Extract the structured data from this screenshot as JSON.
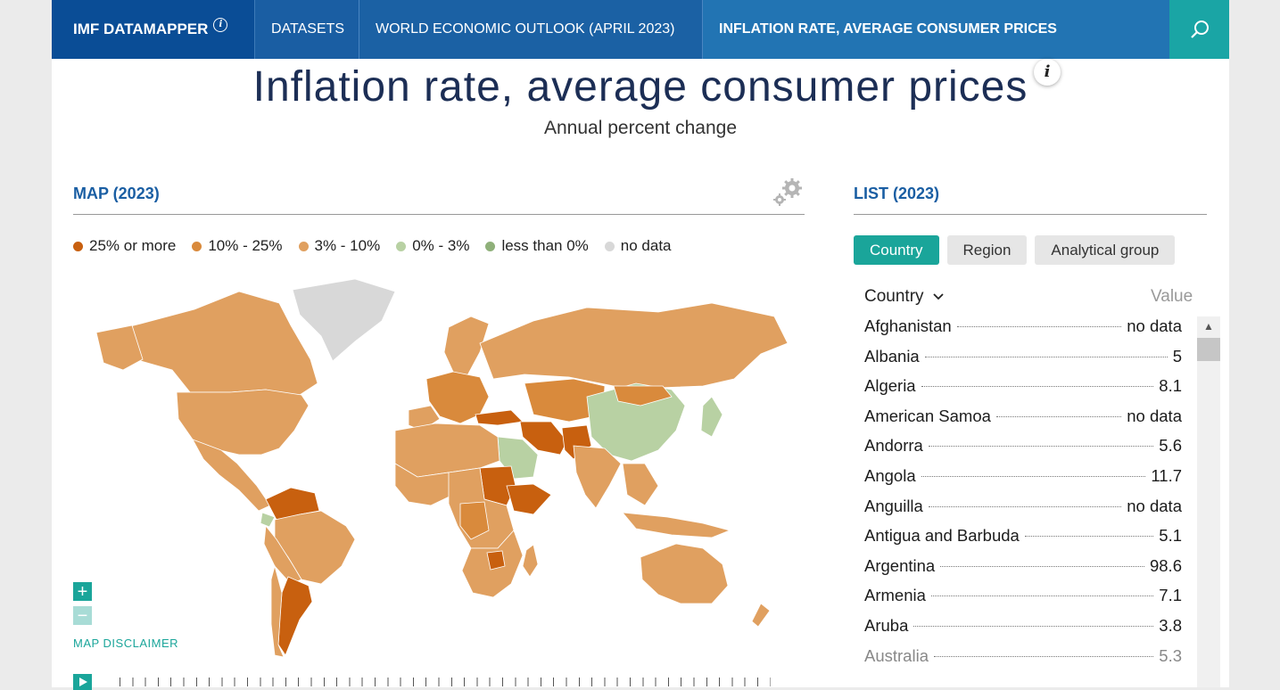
{
  "nav": {
    "brand": "IMF DATAMAPPER",
    "datasets": "DATASETS",
    "weo": "WORLD ECONOMIC OUTLOOK (APRIL 2023)",
    "current": "INFLATION RATE, AVERAGE CONSUMER PRICES"
  },
  "header": {
    "title": "Inflation rate, average consumer prices",
    "subtitle": "Annual percent change"
  },
  "map": {
    "section_title": "MAP (2023)",
    "legend": [
      {
        "label": "25% or more",
        "color": "#c8600f"
      },
      {
        "label": "10% - 25%",
        "color": "#d98a3c"
      },
      {
        "label": "3% - 10%",
        "color": "#e0a060"
      },
      {
        "label": "0% - 3%",
        "color": "#b8d1a3"
      },
      {
        "label": "less than 0%",
        "color": "#8fb07a"
      },
      {
        "label": "no data",
        "color": "#d8d8d8"
      }
    ],
    "zoom_in": "+",
    "zoom_out": "−",
    "disclaimer": "MAP DISCLAIMER"
  },
  "list": {
    "section_title": "LIST (2023)",
    "tabs": [
      "Country",
      "Region",
      "Analytical group"
    ],
    "col_country": "Country",
    "col_value": "Value",
    "rows": [
      {
        "country": "Afghanistan",
        "value": "no data"
      },
      {
        "country": "Albania",
        "value": "5"
      },
      {
        "country": "Algeria",
        "value": "8.1"
      },
      {
        "country": "American Samoa",
        "value": "no data"
      },
      {
        "country": "Andorra",
        "value": "5.6"
      },
      {
        "country": "Angola",
        "value": "11.7"
      },
      {
        "country": "Anguilla",
        "value": "no data"
      },
      {
        "country": "Antigua and Barbuda",
        "value": "5.1"
      },
      {
        "country": "Argentina",
        "value": "98.6"
      },
      {
        "country": "Armenia",
        "value": "7.1"
      },
      {
        "country": "Aruba",
        "value": "3.8"
      },
      {
        "country": "Australia",
        "value": "5.3"
      }
    ]
  }
}
